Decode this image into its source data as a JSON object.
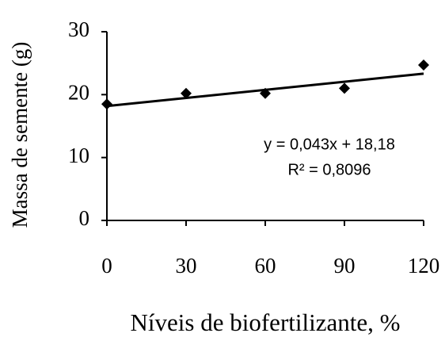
{
  "chart_data": {
    "type": "scatter",
    "x_label": "Níveis de biofertilizante, %",
    "y_label": "Massa de semente (g)",
    "x": [
      0,
      30,
      60,
      90,
      120
    ],
    "series": [
      {
        "color": "#000000",
        "values": [
          18.5,
          20.2,
          20.2,
          21,
          24.7
        ]
      }
    ],
    "xlim": [
      0,
      120
    ],
    "xticks": [
      0,
      30,
      60,
      90,
      120
    ],
    "ylim": [
      0,
      30
    ],
    "yticks": [
      0,
      10,
      20,
      30
    ],
    "grid": false,
    "trendline": {
      "slope": 0.043,
      "intercept": 18.18,
      "color": "#000000"
    },
    "annotations": [
      "y = 0,043x + 18,18",
      "R² = 0,8096"
    ]
  }
}
